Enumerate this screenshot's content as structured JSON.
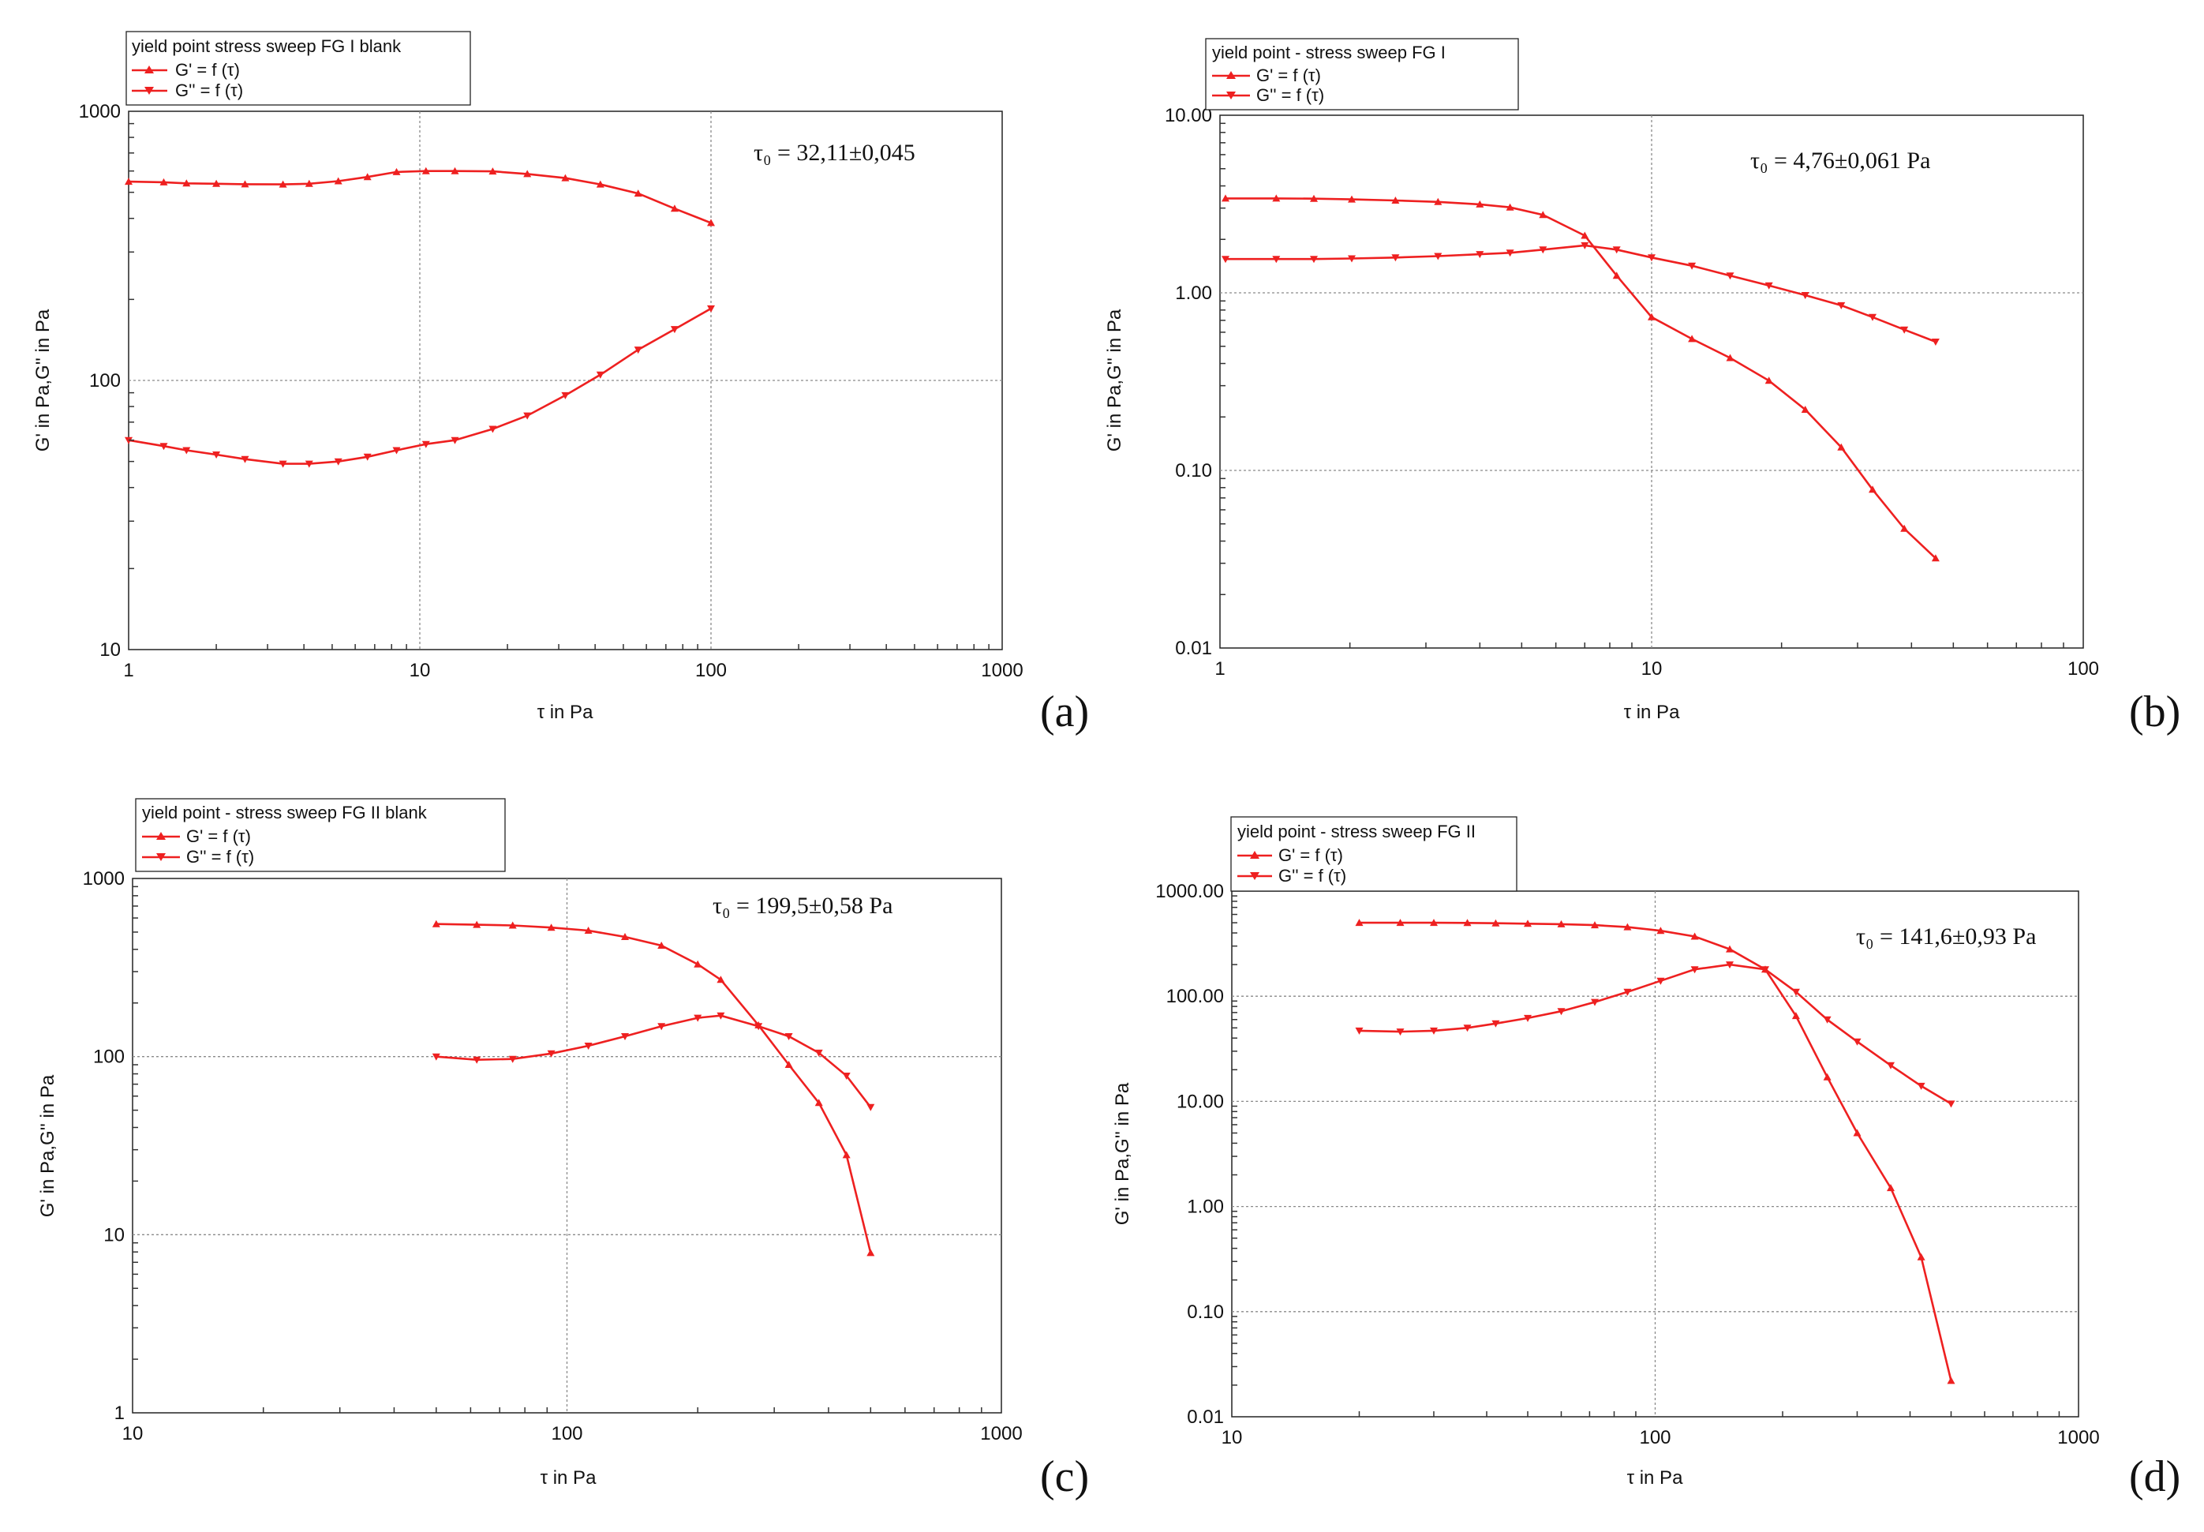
{
  "chart_data": [
    {
      "type": "line",
      "scale": "log-log",
      "legend_title": "yield point stress sweep FG I blank",
      "xlabel": "τ in Pa",
      "ylabel": "G' in Pa,G'' in Pa",
      "xlim": [
        1,
        1000
      ],
      "ylim": [
        10,
        1000
      ],
      "x_ticks": [
        1,
        10,
        100,
        1000
      ],
      "x_tick_labels": [
        "1",
        "10",
        "100",
        "1000"
      ],
      "y_ticks": [
        10,
        100,
        1000
      ],
      "y_tick_labels": [
        "10",
        "100",
        "1000"
      ],
      "annotation": "τ₀  =  32,11±0,045",
      "panel_label": "(a)",
      "series": [
        {
          "name": "G' = f (τ)",
          "marker": "triangle-up",
          "x": [
            1,
            1.32,
            1.58,
            2.0,
            2.51,
            3.39,
            4.17,
            5.25,
            6.61,
            8.32,
            10.5,
            13.2,
            17.8,
            23.4,
            31.6,
            41.7,
            56.2,
            75.0,
            100
          ],
          "y": [
            548,
            545,
            540,
            538,
            536,
            535,
            538,
            550,
            570,
            595,
            600,
            600,
            598,
            585,
            565,
            535,
            495,
            435,
            385
          ]
        },
        {
          "name": "G'' = f (τ)",
          "marker": "triangle-down",
          "x": [
            1,
            1.32,
            1.58,
            2.0,
            2.51,
            3.39,
            4.17,
            5.25,
            6.61,
            8.32,
            10.5,
            13.2,
            17.8,
            23.4,
            31.6,
            41.7,
            56.2,
            75.0,
            100
          ],
          "y": [
            60,
            57,
            55,
            53,
            51,
            49,
            49,
            50,
            52,
            55,
            58,
            60,
            66,
            74,
            88,
            105,
            130,
            155,
            185
          ]
        }
      ]
    },
    {
      "type": "line",
      "scale": "log-log",
      "legend_title": "yield point - stress sweep FG I",
      "xlabel": "τ in Pa",
      "ylabel": "G' in Pa,G'' in Pa",
      "xlim": [
        1,
        100
      ],
      "ylim": [
        0.01,
        10
      ],
      "x_ticks": [
        1,
        10,
        100
      ],
      "x_tick_labels": [
        "1",
        "10",
        "100"
      ],
      "y_ticks": [
        0.01,
        0.1,
        1,
        10
      ],
      "y_tick_labels": [
        "0.01",
        "0.10",
        "1.00",
        "10.00"
      ],
      "annotation": "τ₀ = 4,76±0,061    Pa",
      "panel_label": "(b)",
      "series": [
        {
          "name": "G' = f (τ)",
          "marker": "triangle-up",
          "x": [
            1.03,
            1.35,
            1.65,
            2.02,
            2.55,
            3.2,
            4.0,
            4.7,
            5.6,
            7.0,
            8.3,
            10.0,
            12.4,
            15.2,
            18.7,
            22.7,
            27.5,
            32.5,
            38.5,
            45.5
          ],
          "y": [
            3.4,
            3.4,
            3.39,
            3.36,
            3.31,
            3.25,
            3.15,
            3.03,
            2.75,
            2.1,
            1.25,
            0.73,
            0.55,
            0.43,
            0.32,
            0.22,
            0.135,
            0.078,
            0.047,
            0.032
          ]
        },
        {
          "name": "G'' = f (τ)",
          "marker": "triangle-down",
          "x": [
            1.03,
            1.35,
            1.65,
            2.02,
            2.55,
            3.2,
            4.0,
            4.7,
            5.6,
            7.0,
            8.3,
            10.0,
            12.4,
            15.2,
            18.7,
            22.7,
            27.5,
            32.5,
            38.5,
            45.5
          ],
          "y": [
            1.55,
            1.55,
            1.55,
            1.56,
            1.58,
            1.61,
            1.65,
            1.68,
            1.75,
            1.85,
            1.75,
            1.58,
            1.42,
            1.25,
            1.1,
            0.97,
            0.85,
            0.73,
            0.62,
            0.53
          ]
        }
      ]
    },
    {
      "type": "line",
      "scale": "log-log",
      "legend_title": "yield point - stress sweep FG II blank",
      "xlabel": "τ in Pa",
      "ylabel": "G' in Pa,G'' in Pa",
      "xlim": [
        10,
        1000
      ],
      "ylim": [
        1,
        1000
      ],
      "x_ticks": [
        10,
        100,
        1000
      ],
      "x_tick_labels": [
        "10",
        "100",
        "1000"
      ],
      "y_ticks": [
        1,
        10,
        100,
        1000
      ],
      "y_tick_labels": [
        "1",
        "10",
        "100",
        "1000"
      ],
      "annotation": "τ₀ = 199,5±0,58     Pa",
      "panel_label": "(c)",
      "series": [
        {
          "name": "G' = f (τ)",
          "marker": "triangle-up",
          "x": [
            50,
            62,
            75,
            92,
            112,
            136,
            165,
            200,
            226,
            276,
            324,
            380,
            440,
            500
          ],
          "y": [
            555,
            550,
            545,
            530,
            510,
            470,
            420,
            330,
            270,
            150,
            90,
            55,
            28,
            7.9
          ]
        },
        {
          "name": "G'' = f (τ)",
          "marker": "triangle-down",
          "x": [
            50,
            62,
            75,
            92,
            112,
            136,
            165,
            200,
            226,
            276,
            324,
            380,
            440,
            500
          ],
          "y": [
            100,
            96,
            97,
            104,
            115,
            130,
            148,
            165,
            170,
            148,
            130,
            105,
            78,
            52
          ]
        }
      ]
    },
    {
      "type": "line",
      "scale": "log-log",
      "legend_title": "yield point - stress sweep FG II",
      "xlabel": "τ in Pa",
      "ylabel": "G' in Pa,G'' in Pa",
      "xlim": [
        10,
        1000
      ],
      "ylim": [
        0.01,
        1000
      ],
      "x_ticks": [
        10,
        100,
        1000
      ],
      "x_tick_labels": [
        "10",
        "100",
        "1000"
      ],
      "y_ticks": [
        0.01,
        0.1,
        1,
        10,
        100,
        1000
      ],
      "y_tick_labels": [
        "0.01",
        "0.10",
        "1.00",
        "10.00",
        "100.00",
        "1000.00"
      ],
      "annotation": "τ₀ = 141,6±0,93 Pa",
      "panel_label": "(d)",
      "series": [
        {
          "name": "G' = f (τ)",
          "marker": "triangle-up",
          "x": [
            20,
            25,
            30,
            36,
            42,
            50,
            60,
            72,
            86,
            103,
            124,
            150,
            182,
            215,
            255,
            300,
            360,
            425,
            500
          ],
          "y": [
            500,
            500,
            500,
            498,
            495,
            490,
            485,
            475,
            455,
            420,
            370,
            280,
            180,
            65,
            17,
            5,
            1.5,
            0.33,
            0.022
          ]
        },
        {
          "name": "G'' = f (τ)",
          "marker": "triangle-down",
          "x": [
            20,
            25,
            30,
            36,
            42,
            50,
            60,
            72,
            86,
            103,
            124,
            150,
            182,
            215,
            255,
            300,
            360,
            425,
            500
          ],
          "y": [
            47,
            46,
            47,
            50,
            55,
            62,
            72,
            88,
            110,
            140,
            180,
            200,
            180,
            110,
            60,
            37,
            22,
            14,
            9.5
          ]
        }
      ]
    }
  ]
}
